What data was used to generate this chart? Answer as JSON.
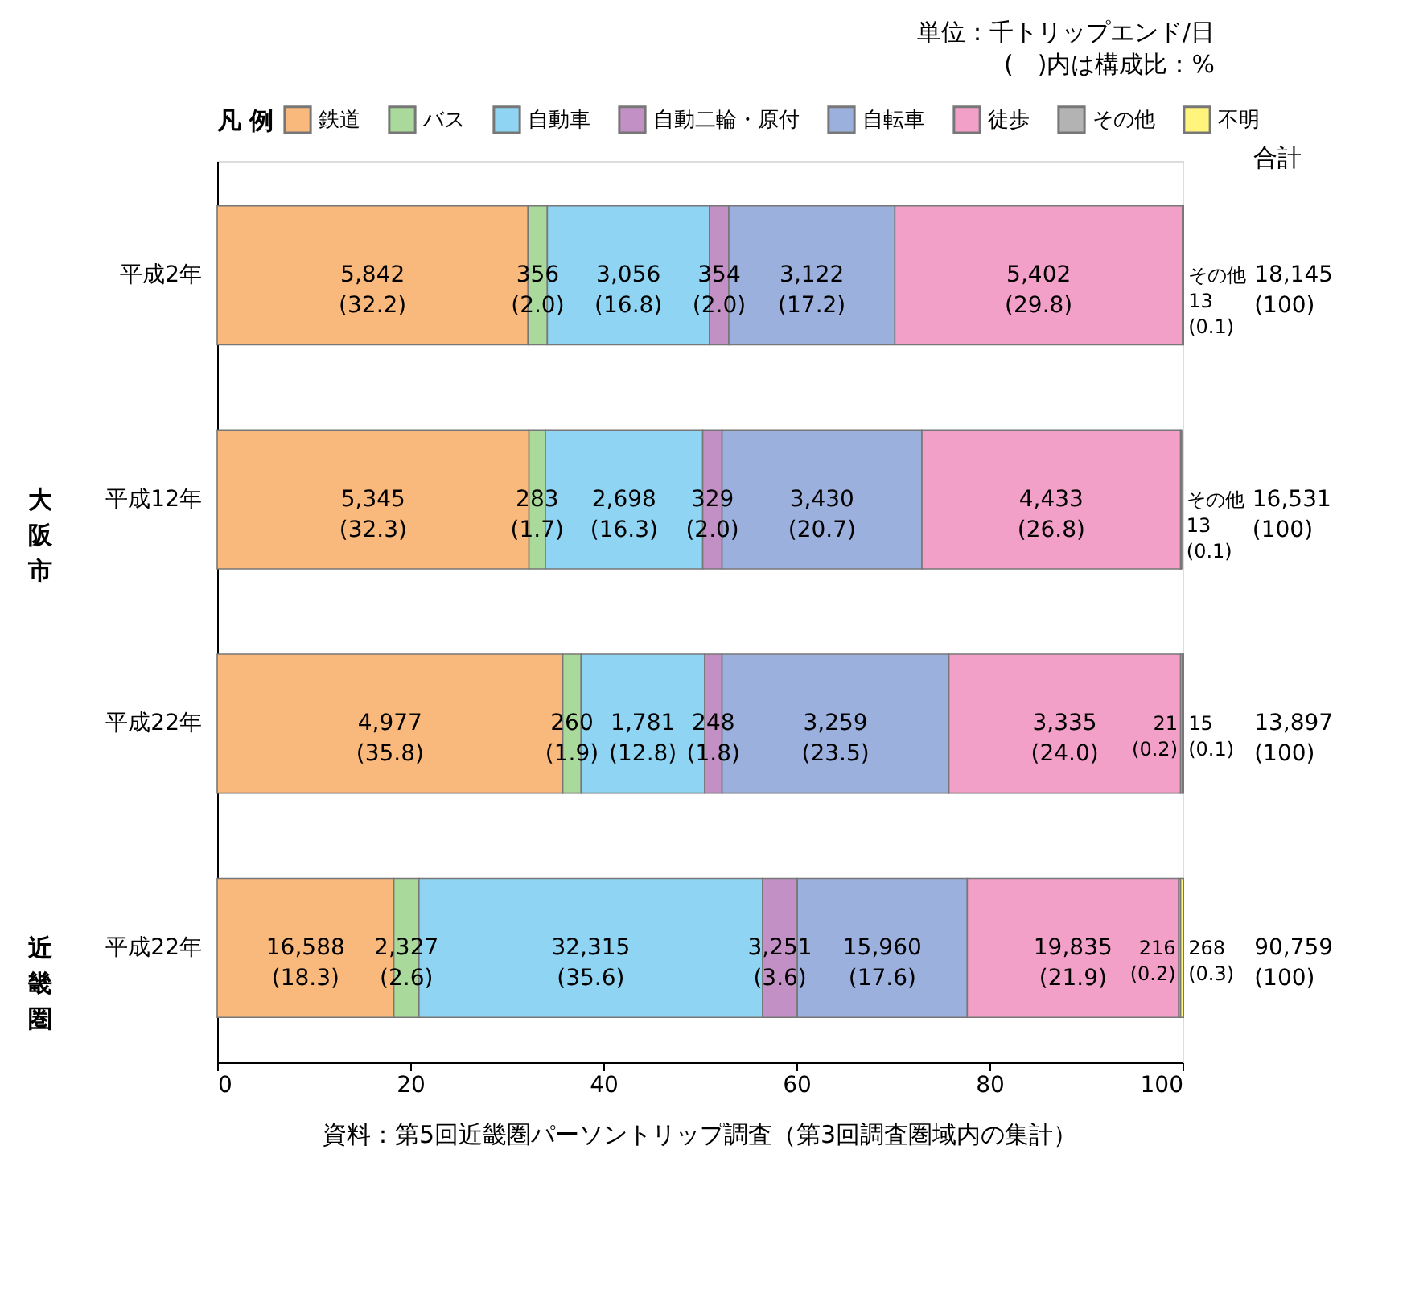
{
  "chart_data": {
    "type": "bar",
    "orientation": "horizontal",
    "stacked": true,
    "legend": "top",
    "legend_title": "凡 例",
    "grid": false,
    "categories": [
      "平成2年",
      "平成12年",
      "平成22年",
      "平成22年"
    ],
    "xlim": [
      0,
      100
    ],
    "xticks": [
      0,
      20,
      40,
      60,
      80,
      100
    ],
    "series": [
      {
        "name": "鉄道",
        "color": "#f9b97c",
        "values": [
          32.2,
          32.3,
          35.8,
          18.3
        ],
        "value_labels": [
          "5,842\n(32.2)",
          "5,345\n(32.3)",
          "4,977\n(35.8)",
          "16,588\n(18.3)"
        ]
      },
      {
        "name": "バス",
        "color": "#a9d99b",
        "values": [
          2.0,
          1.7,
          1.9,
          2.6
        ],
        "value_labels": [
          "356\n(2.0)",
          "283\n(1.7)",
          "260\n(1.9)",
          "2,327\n(2.6)"
        ]
      },
      {
        "name": "自動車",
        "color": "#8fd4f3",
        "values": [
          16.8,
          16.3,
          12.8,
          35.6
        ],
        "value_labels": [
          "3,056\n(16.8)",
          "2,698\n(16.3)",
          "1,781\n(12.8)",
          "32,315\n(35.6)"
        ]
      },
      {
        "name": "自動二輪・原付",
        "color": "#c290c4",
        "values": [
          2.0,
          2.0,
          1.8,
          3.6
        ],
        "value_labels": [
          "354\n(2.0)",
          "329\n(2.0)",
          "248\n(1.8)",
          "3,251\n(3.6)"
        ]
      },
      {
        "name": "自転車",
        "color": "#9cb0de",
        "values": [
          17.2,
          20.7,
          23.5,
          17.6
        ],
        "value_labels": [
          "3,122\n(17.2)",
          "3,430\n(20.7)",
          "3,259\n(23.5)",
          "15,960\n(17.6)"
        ]
      },
      {
        "name": "徒歩",
        "color": "#f3a0c8",
        "values": [
          29.8,
          26.8,
          24.0,
          21.9
        ],
        "value_labels": [
          "5,402\n(29.8)",
          "4,433\n(26.8)",
          "3,335\n(24.0)",
          "19,835\n(21.9)"
        ]
      },
      {
        "name": "その他",
        "color": "#b3b3b3",
        "values": [
          0.1,
          0.1,
          0.2,
          0.2
        ],
        "value_labels": [
          "その他\n13\n(0.1)",
          "その他\n13\n(0.1)",
          "21\n(0.2)",
          "216\n(0.2)"
        ]
      },
      {
        "name": "不明",
        "color": "#fff57c",
        "values": [
          0,
          0,
          0.1,
          0.3
        ],
        "value_labels": [
          null,
          null,
          "15\n(0.1)",
          "268\n(0.3)"
        ]
      }
    ],
    "totals": [
      "18,145\n(100)",
      "16,531\n(100)",
      "13,897\n(100)",
      "90,759\n(100)"
    ],
    "annotations": [
      "単位：千トリップエンド/日",
      "(　)内は構成比：%",
      "資料：第5回近畿圏パーソントリップ調査（第3回調査圏域内の集計）",
      "大阪市",
      "近畿圏",
      "合計"
    ]
  }
}
